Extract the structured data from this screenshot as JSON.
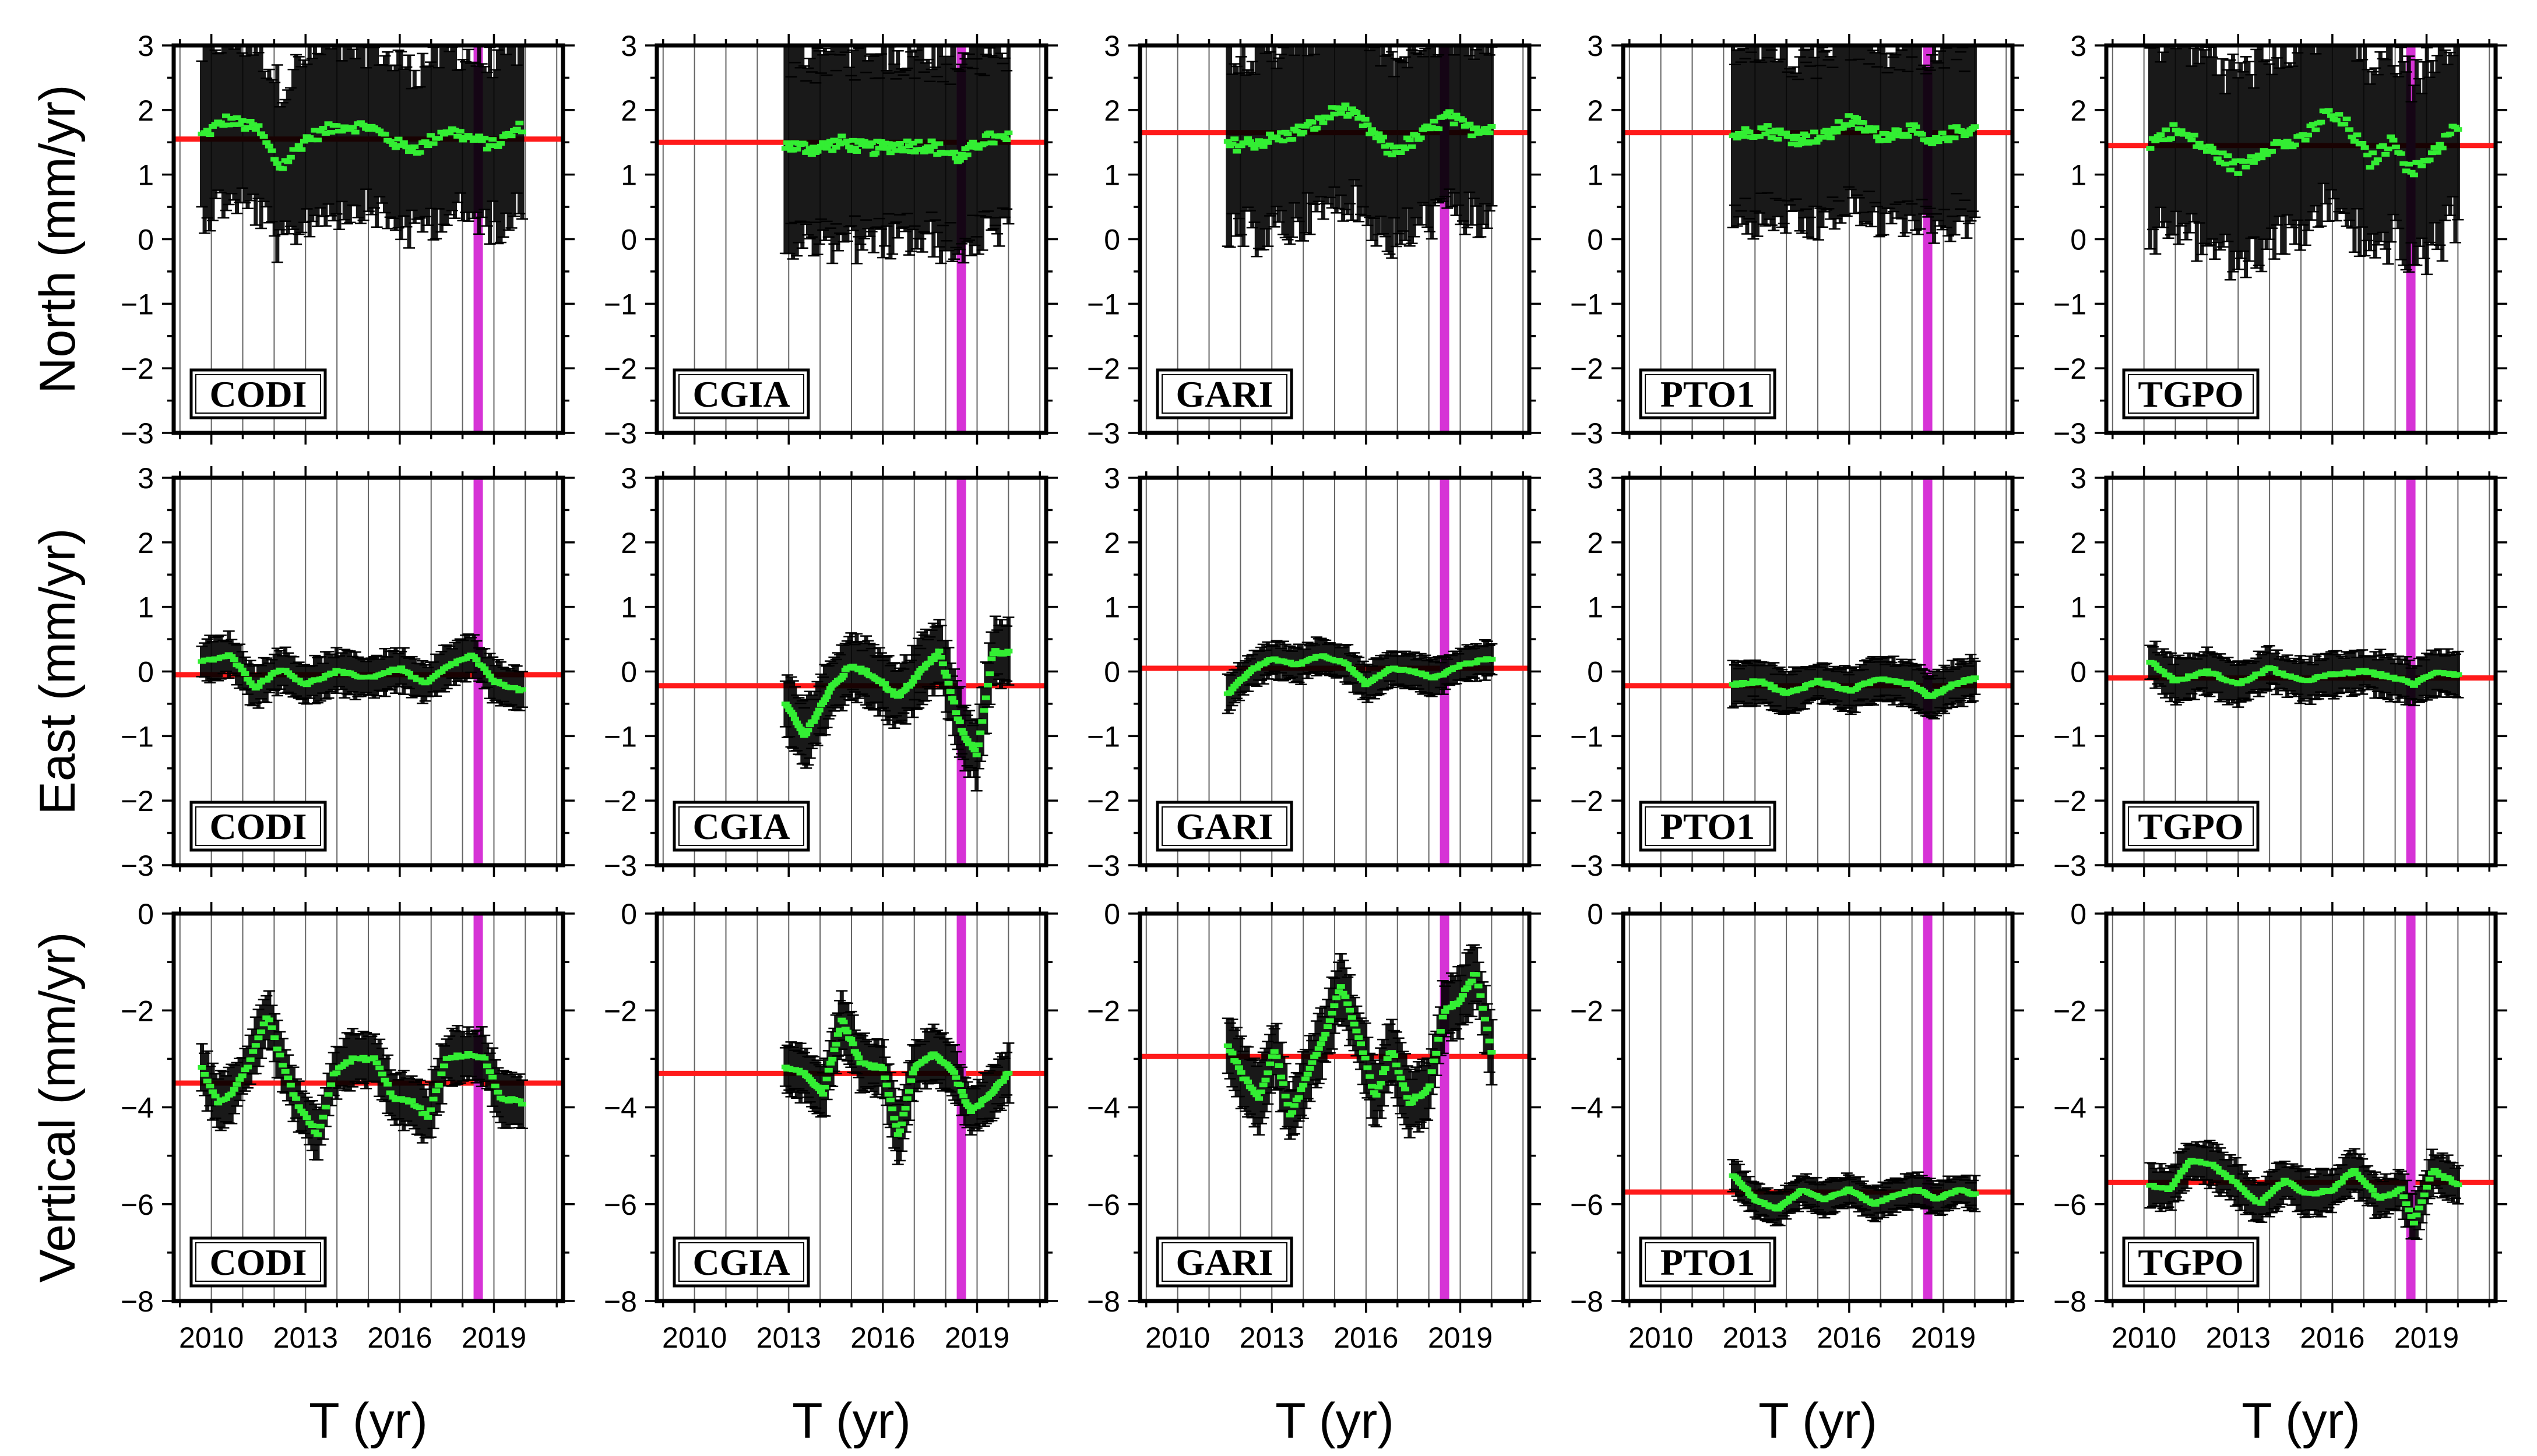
{
  "chart_data": {
    "type": "line",
    "title": "",
    "stations": [
      "CODI",
      "CGIA",
      "GARI",
      "PTO1",
      "TGPO"
    ],
    "xlabel": "T (yr)",
    "xlim": [
      2008.8,
      2021.2
    ],
    "xticks": [
      2010,
      2013,
      2016,
      2019
    ],
    "xtick_labels": [
      "2010",
      "2013",
      "2016",
      "2019"
    ],
    "event_line_year": 2018.5,
    "rows": [
      {
        "component": "North",
        "ylabel": "North (mm/yr)",
        "ylim": [
          -3,
          3
        ],
        "yticks": [
          -3,
          -2,
          -1,
          0,
          1,
          2,
          3
        ],
        "ytick_labels": [
          "−3",
          "−2",
          "−1",
          "0",
          "1",
          "2",
          "3"
        ]
      },
      {
        "component": "East",
        "ylabel": "East (mm/yr)",
        "ylim": [
          -3,
          3
        ],
        "yticks": [
          -3,
          -2,
          -1,
          0,
          1,
          2,
          3
        ],
        "ytick_labels": [
          "−3",
          "−2",
          "−1",
          "0",
          "1",
          "2",
          "3"
        ]
      },
      {
        "component": "Vertical",
        "ylabel": "Vertical (mm/yr)",
        "ylim": [
          -8,
          0
        ],
        "yticks": [
          -8,
          -6,
          -4,
          -2,
          0
        ],
        "ytick_labels": [
          "−8",
          "−6",
          "−4",
          "−2",
          "0"
        ]
      }
    ],
    "panels": [
      {
        "station": "CODI",
        "component": "North",
        "mean": 1.55,
        "t_start": 2009.7,
        "t_end": 2019.9,
        "error": 1.25,
        "x": [
          2009.7,
          2010.5,
          2011.5,
          2012.2,
          2013.0,
          2014.0,
          2015.0,
          2016.0,
          2016.6,
          2017.5,
          2018.3,
          2019.0,
          2019.9
        ],
        "values": [
          1.6,
          1.85,
          1.7,
          1.1,
          1.55,
          1.75,
          1.75,
          1.45,
          1.4,
          1.7,
          1.55,
          1.45,
          1.75
        ]
      },
      {
        "station": "CGIA",
        "component": "North",
        "mean": 1.5,
        "t_start": 2012.9,
        "t_end": 2020.0,
        "error": 1.4,
        "x": [
          2012.9,
          2013.8,
          2014.7,
          2015.5,
          2016.5,
          2017.5,
          2018.5,
          2019.2,
          2020.0
        ],
        "values": [
          1.45,
          1.4,
          1.5,
          1.4,
          1.45,
          1.45,
          1.25,
          1.55,
          1.55
        ]
      },
      {
        "station": "GARI",
        "component": "North",
        "mean": 1.65,
        "t_start": 2011.6,
        "t_end": 2020.0,
        "error": 1.4,
        "x": [
          2011.6,
          2012.5,
          2013.5,
          2014.5,
          2015.2,
          2016.0,
          2016.8,
          2017.6,
          2018.6,
          2019.3,
          2020.0
        ],
        "values": [
          1.45,
          1.5,
          1.6,
          1.8,
          2.05,
          1.75,
          1.35,
          1.55,
          1.9,
          1.7,
          1.75
        ]
      },
      {
        "station": "PTO1",
        "component": "North",
        "mean": 1.65,
        "t_start": 2012.3,
        "t_end": 2020.0,
        "error": 1.3,
        "x": [
          2012.3,
          2013.3,
          2014.3,
          2015.3,
          2016.0,
          2017.0,
          2018.0,
          2018.6,
          2019.3,
          2020.0
        ],
        "values": [
          1.6,
          1.7,
          1.55,
          1.6,
          1.85,
          1.6,
          1.7,
          1.45,
          1.65,
          1.7
        ]
      },
      {
        "station": "TGPO",
        "component": "North",
        "mean": 1.45,
        "t_start": 2010.2,
        "t_end": 2020.0,
        "error": 1.45,
        "x": [
          2010.2,
          2011.0,
          2012.0,
          2013.0,
          2014.0,
          2015.0,
          2015.8,
          2016.5,
          2017.2,
          2018.0,
          2018.5,
          2019.2,
          2020.0
        ],
        "values": [
          1.5,
          1.7,
          1.4,
          1.1,
          1.45,
          1.5,
          1.95,
          1.75,
          1.2,
          1.55,
          1.0,
          1.35,
          1.75
        ]
      },
      {
        "station": "CODI",
        "component": "East",
        "mean": -0.05,
        "t_start": 2009.7,
        "t_end": 2019.9,
        "error": 0.3,
        "x": [
          2009.7,
          2010.6,
          2011.4,
          2012.2,
          2013.0,
          2014.0,
          2015.0,
          2016.0,
          2016.8,
          2017.6,
          2018.3,
          2019.0,
          2019.9
        ],
        "values": [
          0.15,
          0.25,
          -0.25,
          0.05,
          -0.2,
          0.0,
          -0.1,
          0.05,
          -0.2,
          0.1,
          0.25,
          -0.15,
          -0.3
        ]
      },
      {
        "station": "CGIA",
        "component": "East",
        "mean": -0.22,
        "t_start": 2012.9,
        "t_end": 2020.0,
        "error": 0.45,
        "x": [
          2012.9,
          2013.5,
          2014.3,
          2015.0,
          2015.8,
          2016.5,
          2017.2,
          2017.8,
          2018.5,
          2019.0,
          2019.5,
          2020.0
        ],
        "values": [
          -0.5,
          -1.0,
          -0.3,
          0.1,
          -0.1,
          -0.4,
          0.0,
          0.3,
          -0.9,
          -1.3,
          0.3,
          0.3
        ]
      },
      {
        "station": "GARI",
        "component": "East",
        "mean": 0.05,
        "t_start": 2011.6,
        "t_end": 2020.0,
        "error": 0.25,
        "x": [
          2011.6,
          2012.3,
          2013.0,
          2013.8,
          2014.5,
          2015.3,
          2016.0,
          2016.8,
          2017.5,
          2018.2,
          2019.0,
          2020.0
        ],
        "values": [
          -0.35,
          0.0,
          0.2,
          0.1,
          0.25,
          0.15,
          -0.2,
          0.05,
          0.0,
          -0.1,
          0.1,
          0.2
        ]
      },
      {
        "station": "PTO1",
        "component": "East",
        "mean": -0.22,
        "t_start": 2012.3,
        "t_end": 2020.0,
        "error": 0.3,
        "x": [
          2012.3,
          2013.2,
          2014.0,
          2015.0,
          2016.0,
          2017.0,
          2018.0,
          2018.6,
          2019.3,
          2020.0
        ],
        "values": [
          -0.2,
          -0.15,
          -0.35,
          -0.15,
          -0.3,
          -0.1,
          -0.2,
          -0.4,
          -0.2,
          -0.1
        ]
      },
      {
        "station": "TGPO",
        "component": "East",
        "mean": -0.1,
        "t_start": 2010.2,
        "t_end": 2020.0,
        "error": 0.3,
        "x": [
          2010.2,
          2011.0,
          2012.0,
          2013.0,
          2014.0,
          2015.0,
          2016.0,
          2017.0,
          2018.0,
          2018.6,
          2019.3,
          2020.0
        ],
        "values": [
          0.15,
          -0.15,
          0.0,
          -0.2,
          0.05,
          -0.15,
          -0.05,
          0.0,
          -0.1,
          -0.2,
          0.0,
          -0.05
        ]
      },
      {
        "station": "CODI",
        "component": "Vertical",
        "mean": -3.5,
        "t_start": 2009.7,
        "t_end": 2019.9,
        "error": 0.5,
        "x": [
          2009.7,
          2010.2,
          2010.7,
          2011.2,
          2011.8,
          2012.3,
          2012.8,
          2013.4,
          2013.9,
          2014.5,
          2015.2,
          2015.8,
          2016.4,
          2016.9,
          2017.5,
          2018.2,
          2018.7,
          2019.2,
          2019.9
        ],
        "values": [
          -3.2,
          -3.9,
          -3.7,
          -3.1,
          -2.1,
          -3.2,
          -4.0,
          -4.6,
          -3.3,
          -3.0,
          -3.0,
          -3.8,
          -3.9,
          -4.2,
          -3.0,
          -2.9,
          -3.0,
          -3.8,
          -3.9
        ]
      },
      {
        "station": "CGIA",
        "component": "Vertical",
        "mean": -3.3,
        "t_start": 2012.9,
        "t_end": 2020.0,
        "error": 0.5,
        "x": [
          2012.9,
          2013.5,
          2014.1,
          2014.7,
          2015.3,
          2016.0,
          2016.5,
          2017.0,
          2017.6,
          2018.2,
          2018.8,
          2019.3,
          2020.0
        ],
        "values": [
          -3.2,
          -3.3,
          -3.7,
          -2.2,
          -3.1,
          -3.2,
          -4.6,
          -3.2,
          -2.9,
          -3.2,
          -4.1,
          -3.8,
          -3.3
        ]
      },
      {
        "station": "GARI",
        "component": "Vertical",
        "mean": -2.95,
        "t_start": 2011.6,
        "t_end": 2020.0,
        "error": 0.6,
        "x": [
          2011.6,
          2012.1,
          2012.6,
          2013.1,
          2013.6,
          2014.2,
          2014.7,
          2015.2,
          2015.8,
          2016.3,
          2016.8,
          2017.4,
          2018.0,
          2018.5,
          2019.0,
          2019.5,
          2020.0
        ],
        "values": [
          -2.7,
          -3.4,
          -3.8,
          -2.8,
          -4.2,
          -3.2,
          -2.5,
          -1.5,
          -2.6,
          -3.8,
          -2.8,
          -3.9,
          -3.6,
          -2.0,
          -1.8,
          -1.2,
          -2.9
        ]
      },
      {
        "station": "PTO1",
        "component": "Vertical",
        "mean": -5.75,
        "t_start": 2012.3,
        "t_end": 2020.0,
        "error": 0.3,
        "x": [
          2012.3,
          2013.0,
          2013.7,
          2014.5,
          2015.2,
          2016.0,
          2016.8,
          2017.5,
          2018.2,
          2018.8,
          2019.5,
          2020.0
        ],
        "values": [
          -5.4,
          -5.9,
          -6.1,
          -5.7,
          -5.9,
          -5.7,
          -6.0,
          -5.8,
          -5.7,
          -5.9,
          -5.7,
          -5.8
        ]
      },
      {
        "station": "TGPO",
        "component": "Vertical",
        "mean": -5.55,
        "t_start": 2010.2,
        "t_end": 2020.0,
        "error": 0.4,
        "x": [
          2010.2,
          2010.8,
          2011.5,
          2012.2,
          2013.0,
          2013.7,
          2014.5,
          2015.2,
          2016.0,
          2016.7,
          2017.5,
          2018.2,
          2018.6,
          2019.2,
          2020.0
        ],
        "values": [
          -5.6,
          -5.7,
          -5.1,
          -5.2,
          -5.6,
          -6.0,
          -5.5,
          -5.8,
          -5.7,
          -5.3,
          -5.9,
          -5.7,
          -6.4,
          -5.3,
          -5.6
        ]
      }
    ]
  }
}
